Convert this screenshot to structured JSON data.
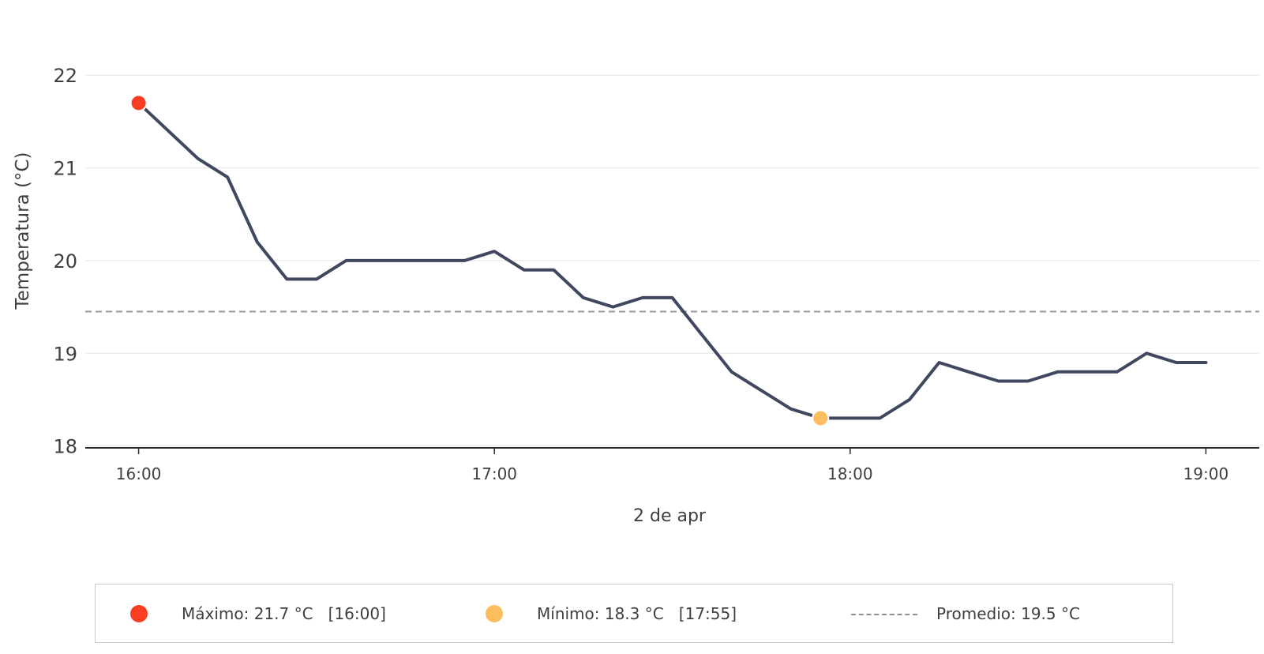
{
  "chart_data": {
    "type": "line",
    "xlabel": "2 de apr",
    "ylabel": "Temperatura (°C)",
    "xlim": [
      "15:51",
      "19:09"
    ],
    "ylim": [
      17.98,
      22.3
    ],
    "grid": "horizontal",
    "x_ticks": [
      "16:00",
      "17:00",
      "18:00",
      "19:00"
    ],
    "y_ticks": [
      18,
      19,
      20,
      21,
      22
    ],
    "series": [
      {
        "color": "#404860",
        "points": [
          {
            "x": "16:00",
            "y": 21.7
          },
          {
            "x": "16:10",
            "y": 21.1
          },
          {
            "x": "16:15",
            "y": 20.9
          },
          {
            "x": "16:20",
            "y": 20.2
          },
          {
            "x": "16:25",
            "y": 19.8
          },
          {
            "x": "16:30",
            "y": 19.8
          },
          {
            "x": "16:35",
            "y": 20.0
          },
          {
            "x": "16:40",
            "y": 20.0
          },
          {
            "x": "16:45",
            "y": 20.0
          },
          {
            "x": "16:50",
            "y": 20.0
          },
          {
            "x": "16:55",
            "y": 20.0
          },
          {
            "x": "17:00",
            "y": 20.1
          },
          {
            "x": "17:05",
            "y": 19.9
          },
          {
            "x": "17:10",
            "y": 19.9
          },
          {
            "x": "17:15",
            "y": 19.6
          },
          {
            "x": "17:20",
            "y": 19.5
          },
          {
            "x": "17:25",
            "y": 19.6
          },
          {
            "x": "17:30",
            "y": 19.6
          },
          {
            "x": "17:40",
            "y": 18.8
          },
          {
            "x": "17:50",
            "y": 18.4
          },
          {
            "x": "17:55",
            "y": 18.3
          },
          {
            "x": "18:00",
            "y": 18.3
          },
          {
            "x": "18:05",
            "y": 18.3
          },
          {
            "x": "18:10",
            "y": 18.5
          },
          {
            "x": "18:15",
            "y": 18.9
          },
          {
            "x": "18:20",
            "y": 18.8
          },
          {
            "x": "18:25",
            "y": 18.7
          },
          {
            "x": "18:30",
            "y": 18.7
          },
          {
            "x": "18:35",
            "y": 18.8
          },
          {
            "x": "18:40",
            "y": 18.8
          },
          {
            "x": "18:45",
            "y": 18.8
          },
          {
            "x": "18:50",
            "y": 19.0
          },
          {
            "x": "18:55",
            "y": 18.9
          },
          {
            "x": "19:00",
            "y": 18.9
          }
        ]
      }
    ],
    "average": {
      "y": 19.45,
      "color": "#9a9a9a",
      "style": "dashed"
    },
    "markers": [
      {
        "name": "max",
        "x": "16:00",
        "y": 21.7,
        "color": "#fa3e23"
      },
      {
        "name": "min",
        "x": "17:55",
        "y": 18.3,
        "color": "#fcbd5e"
      }
    ],
    "legend": {
      "position": "bottom",
      "max_label": "Máximo: 21.7 °C   [16:00]",
      "min_label": "Mínimo: 18.3 °C   [17:55]",
      "avg_label": "Promedio: 19.5 °C"
    }
  }
}
